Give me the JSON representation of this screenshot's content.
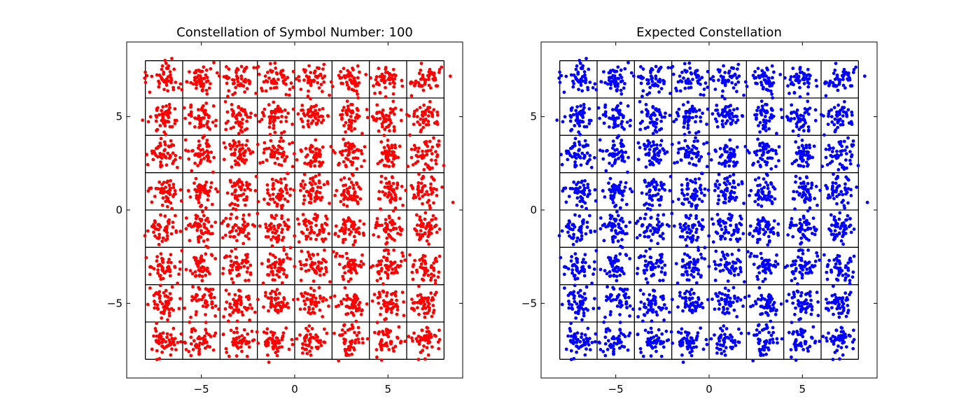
{
  "figure": {
    "left_title": "Constellation of Symbol Number: 100",
    "right_title": "Expected Constellation"
  },
  "chart_data": [
    {
      "type": "scatter",
      "title": "Constellation of Symbol Number: 100",
      "xlabel": "",
      "ylabel": "",
      "xlim": [
        -9,
        9
      ],
      "ylim": [
        -9,
        9
      ],
      "xticks": [
        -5,
        0,
        5
      ],
      "yticks": [
        -5,
        0,
        5
      ],
      "xtick_labels": [
        "−5",
        "0",
        "5"
      ],
      "ytick_labels": [
        "−5",
        "0",
        "5"
      ],
      "decision_grid_lines": [
        -8,
        -6,
        -4,
        -2,
        0,
        2,
        4,
        6,
        8
      ],
      "constellation_levels": [
        -7,
        -5,
        -3,
        -1,
        1,
        3,
        5,
        7
      ],
      "approx_points_per_symbol": 50,
      "approx_noise_spread": 0.4,
      "marker_color": "#ff0000",
      "grid": true,
      "legend": false
    },
    {
      "type": "scatter",
      "title": "Expected Constellation",
      "xlabel": "",
      "ylabel": "",
      "xlim": [
        -9,
        9
      ],
      "ylim": [
        -9,
        9
      ],
      "xticks": [
        -5,
        0,
        5
      ],
      "yticks": [
        -5,
        0,
        5
      ],
      "xtick_labels": [
        "−5",
        "0",
        "5"
      ],
      "ytick_labels": [
        "−5",
        "0",
        "5"
      ],
      "decision_grid_lines": [
        -8,
        -6,
        -4,
        -2,
        0,
        2,
        4,
        6,
        8
      ],
      "constellation_levels": [
        -7,
        -5,
        -3,
        -1,
        1,
        3,
        5,
        7
      ],
      "approx_points_per_symbol": 50,
      "approx_noise_spread": 0.4,
      "marker_color": "#0000ff",
      "grid": true,
      "legend": false
    }
  ]
}
